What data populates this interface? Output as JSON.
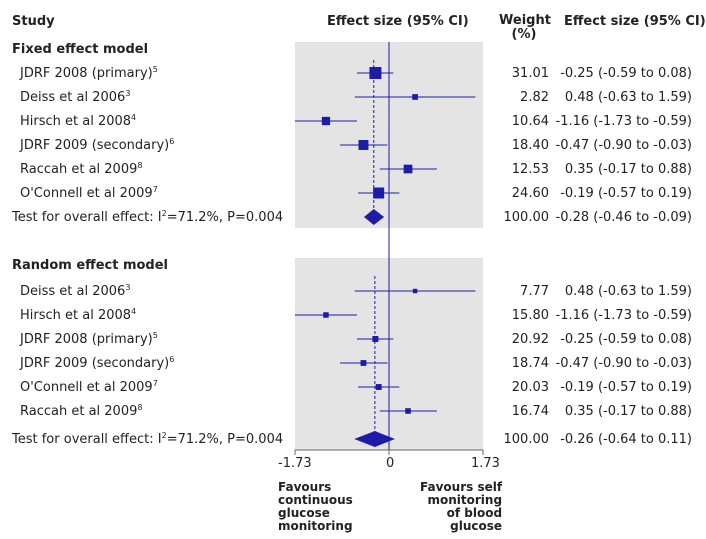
{
  "headers": {
    "study": "Study",
    "effect": "Effect size (95% CI)",
    "weight": "Weight\n(%)",
    "effect_right": "Effect size (95% CI)"
  },
  "x_ticks": [
    "-1.73",
    "0",
    "1.73"
  ],
  "favours_left": "Favours\ncontinuous\nglucose\nmonitoring",
  "favours_right": "Favours self\nmonitoring\nof blood\nglucose",
  "colors": {
    "marker": "#1c1ca8",
    "shade": "#e4e4e4",
    "axis": "#1c1ca8"
  },
  "chart_data": {
    "type": "forest",
    "xlim": [
      -1.73,
      1.73
    ],
    "reference_line": 0,
    "groups": [
      {
        "title": "Fixed effect model",
        "studies": [
          {
            "label": "JDRF 2008 (primary)",
            "ref": "5",
            "weight": "31.01",
            "effect": -0.25,
            "lo": -0.59,
            "hi": 0.08,
            "ci_text": "-0.25 (-0.59 to 0.08)"
          },
          {
            "label": "Deiss et al 2006",
            "ref": "3",
            "weight": "2.82",
            "effect": 0.48,
            "lo": -0.63,
            "hi": 1.59,
            "ci_text": "0.48 (-0.63 to 1.59)"
          },
          {
            "label": "Hirsch et al 2008",
            "ref": "4",
            "weight": "10.64",
            "effect": -1.16,
            "lo": -1.73,
            "hi": -0.59,
            "ci_text": "-1.16 (-1.73 to -0.59)"
          },
          {
            "label": "JDRF 2009 (secondary)",
            "ref": "6",
            "weight": "18.40",
            "effect": -0.47,
            "lo": -0.9,
            "hi": -0.03,
            "ci_text": "-0.47 (-0.90 to -0.03)"
          },
          {
            "label": "Raccah et al 2009",
            "ref": "8",
            "weight": "12.53",
            "effect": 0.35,
            "lo": -0.17,
            "hi": 0.88,
            "ci_text": "0.35 (-0.17 to 0.88)"
          },
          {
            "label": "O'Connell et al 2009",
            "ref": "7",
            "weight": "24.60",
            "effect": -0.19,
            "lo": -0.57,
            "hi": 0.19,
            "ci_text": "-0.19 (-0.57 to 0.19)"
          }
        ],
        "overall": {
          "label": "Test for overall effect: I",
          "sup": "2",
          "label_rest": "=71.2%, P=0.004",
          "weight": "100.00",
          "effect": -0.28,
          "lo": -0.46,
          "hi": -0.09,
          "ci_text": "-0.28 (-0.46 to -0.09)"
        }
      },
      {
        "title": "Random effect model",
        "studies": [
          {
            "label": "Deiss et al 2006",
            "ref": "3",
            "weight": "7.77",
            "effect": 0.48,
            "lo": -0.63,
            "hi": 1.59,
            "ci_text": "0.48 (-0.63 to 1.59)"
          },
          {
            "label": "Hirsch et al 2008",
            "ref": "4",
            "weight": "15.80",
            "effect": -1.16,
            "lo": -1.73,
            "hi": -0.59,
            "ci_text": "-1.16 (-1.73 to -0.59)"
          },
          {
            "label": "JDRF 2008 (primary)",
            "ref": "5",
            "weight": "20.92",
            "effect": -0.25,
            "lo": -0.59,
            "hi": 0.08,
            "ci_text": "-0.25 (-0.59 to 0.08)"
          },
          {
            "label": "JDRF 2009 (secondary)",
            "ref": "6",
            "weight": "18.74",
            "effect": -0.47,
            "lo": -0.9,
            "hi": -0.03,
            "ci_text": "-0.47 (-0.90 to -0.03)"
          },
          {
            "label": "O'Connell et al 2009",
            "ref": "7",
            "weight": "20.03",
            "effect": -0.19,
            "lo": -0.57,
            "hi": 0.19,
            "ci_text": "-0.19 (-0.57 to 0.19)"
          },
          {
            "label": "Raccah et al 2009",
            "ref": "8",
            "weight": "16.74",
            "effect": 0.35,
            "lo": -0.17,
            "hi": 0.88,
            "ci_text": "0.35 (-0.17 to 0.88)"
          }
        ],
        "overall": {
          "label": "Test for overall effect: I",
          "sup": "2",
          "label_rest": "=71.2%, P=0.004",
          "weight": "100.00",
          "effect": -0.26,
          "lo": -0.64,
          "hi": 0.11,
          "ci_text": "-0.26 (-0.64 to 0.11)"
        }
      }
    ]
  }
}
